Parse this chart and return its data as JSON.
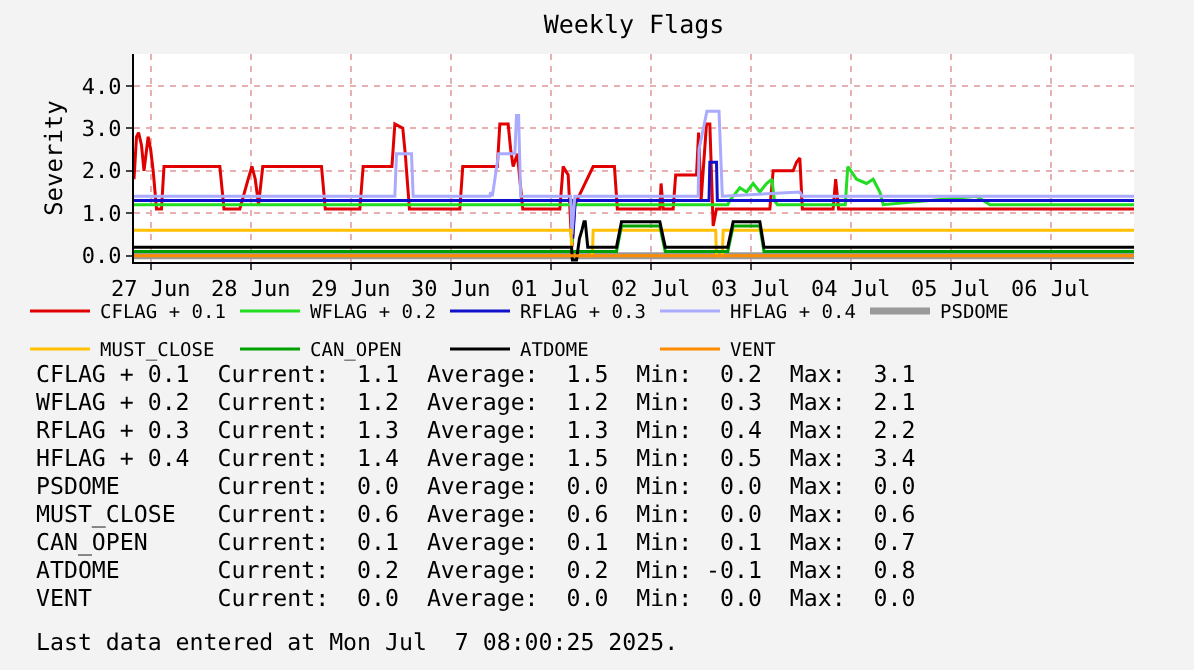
{
  "chart_data": {
    "type": "line",
    "title": "Weekly Flags",
    "ylabel": "Severity",
    "xlim": [
      "2025-06-27T08:00",
      "2025-07-07T08:00"
    ],
    "xticks": [
      {
        "value": "2025-06-27T12:00",
        "label": "27 Jun"
      },
      {
        "value": "2025-06-28T12:00",
        "label": "28 Jun"
      },
      {
        "value": "2025-06-29T12:00",
        "label": "29 Jun"
      },
      {
        "value": "2025-06-30T12:00",
        "label": "30 Jun"
      },
      {
        "value": "2025-07-01T12:00",
        "label": "01 Jul"
      },
      {
        "value": "2025-07-02T12:00",
        "label": "02 Jul"
      },
      {
        "value": "2025-07-03T12:00",
        "label": "03 Jul"
      },
      {
        "value": "2025-07-04T12:00",
        "label": "04 Jul"
      },
      {
        "value": "2025-07-05T12:00",
        "label": "05 Jul"
      },
      {
        "value": "2025-07-06T12:00",
        "label": "06 Jul"
      }
    ],
    "ylim": [
      -0.15,
      4.75
    ],
    "yticks": [
      {
        "value": 0,
        "label": "0.0"
      },
      {
        "value": 1,
        "label": "1.0"
      },
      {
        "value": 2,
        "label": "2.0"
      },
      {
        "value": 3,
        "label": "3.0"
      },
      {
        "value": 4,
        "label": "4.0"
      }
    ],
    "grid": true,
    "legend": "bottom",
    "marker": "none",
    "line_style": "solid",
    "series": [
      {
        "name": "CFLAG + 0.1",
        "color": "#e00000",
        "x": [
          "2025-06-27T08:00",
          "2025-06-27T08:36",
          "2025-06-27T09:06",
          "2025-06-27T09:48",
          "2025-06-27T10:24",
          "2025-06-27T11:24",
          "2025-06-27T12:00",
          "2025-06-27T12:36",
          "2025-06-27T13:24",
          "2025-06-27T14:36",
          "2025-06-27T15:12",
          "2025-06-28T04:36",
          "2025-06-28T05:36",
          "2025-06-28T09:24",
          "2025-06-28T11:24",
          "2025-06-28T12:18",
          "2025-06-28T13:06",
          "2025-06-28T13:54",
          "2025-06-28T14:54",
          "2025-06-29T05:00",
          "2025-06-29T05:54",
          "2025-06-29T14:12",
          "2025-06-29T15:00",
          "2025-06-29T21:54",
          "2025-06-29T22:36",
          "2025-06-30T00:30",
          "2025-06-30T01:06",
          "2025-06-30T02:06",
          "2025-06-30T14:12",
          "2025-06-30T14:54",
          "2025-06-30T23:12",
          "2025-06-30T23:48",
          "2025-07-01T01:48",
          "2025-07-01T02:24",
          "2025-07-01T03:00",
          "2025-07-01T04:00",
          "2025-07-01T05:18",
          "2025-07-01T14:12",
          "2025-07-01T15:00",
          "2025-07-01T16:12",
          "2025-07-01T17:06",
          "2025-07-01T17:48",
          "2025-07-01T22:12",
          "2025-07-02T03:18",
          "2025-07-02T04:00",
          "2025-07-02T14:12",
          "2025-07-02T14:30",
          "2025-07-02T15:00",
          "2025-07-02T17:24",
          "2025-07-02T18:00",
          "2025-07-02T23:00",
          "2025-07-02T23:30",
          "2025-07-03T00:06",
          "2025-07-03T01:24",
          "2025-07-03T02:12",
          "2025-07-03T03:00",
          "2025-07-03T03:48",
          "2025-07-03T16:36",
          "2025-07-03T17:24",
          "2025-07-03T22:12",
          "2025-07-03T23:00",
          "2025-07-03T23:48",
          "2025-07-04T00:24",
          "2025-07-04T07:48",
          "2025-07-04T08:24",
          "2025-07-04T09:06",
          "2025-07-07T08:00"
        ],
        "values": [
          1.8,
          2.8,
          2.9,
          2.6,
          2.0,
          2.8,
          2.5,
          2.0,
          1.1,
          1.1,
          2.1,
          2.1,
          1.1,
          1.1,
          1.8,
          2.1,
          1.8,
          1.2,
          2.1,
          2.1,
          1.1,
          1.1,
          2.1,
          2.1,
          3.1,
          3.0,
          2.4,
          1.1,
          1.1,
          2.1,
          2.1,
          3.1,
          3.1,
          2.5,
          2.1,
          2.4,
          1.1,
          1.1,
          2.1,
          1.9,
          0.2,
          1.2,
          2.1,
          2.1,
          1.1,
          1.1,
          1.7,
          1.1,
          1.1,
          1.9,
          1.9,
          2.9,
          1.3,
          3.1,
          3.1,
          0.7,
          1.1,
          1.1,
          2.0,
          2.0,
          2.2,
          2.3,
          1.1,
          1.1,
          1.8,
          1.1,
          1.1
        ]
      },
      {
        "name": "WFLAG + 0.2",
        "color": "#22dd22",
        "x": [
          "2025-06-27T08:00",
          "2025-07-01T17:00",
          "2025-07-01T17:12",
          "2025-07-01T17:30",
          "2025-07-03T06:30",
          "2025-07-03T07:00",
          "2025-07-03T09:24",
          "2025-07-03T11:00",
          "2025-07-03T12:36",
          "2025-07-03T14:12",
          "2025-07-03T15:48",
          "2025-07-03T17:06",
          "2025-07-03T17:42",
          "2025-07-03T18:24",
          "2025-07-04T10:42",
          "2025-07-04T11:18",
          "2025-07-04T13:24",
          "2025-07-04T15:48",
          "2025-07-04T17:24",
          "2025-07-04T19:00",
          "2025-07-04T19:48",
          "2025-07-05T18:12",
          "2025-07-05T19:48",
          "2025-07-05T21:24",
          "2025-07-07T08:00"
        ],
        "values": [
          1.2,
          1.2,
          0.3,
          1.2,
          1.2,
          1.3,
          1.6,
          1.5,
          1.7,
          1.5,
          1.7,
          1.8,
          1.3,
          1.2,
          1.2,
          2.1,
          1.8,
          1.7,
          1.8,
          1.5,
          1.2,
          1.4,
          1.3,
          1.2,
          1.2
        ]
      },
      {
        "name": "RFLAG + 0.3",
        "color": "#1111cc",
        "x": [
          "2025-06-27T08:00",
          "2025-07-01T17:06",
          "2025-07-01T17:18",
          "2025-07-01T17:54",
          "2025-07-03T02:00",
          "2025-07-03T02:12",
          "2025-07-03T03:48",
          "2025-07-03T04:00",
          "2025-07-07T08:00"
        ],
        "values": [
          1.3,
          1.3,
          0.4,
          1.3,
          1.3,
          2.2,
          2.2,
          1.3,
          1.3
        ]
      },
      {
        "name": "HFLAG + 0.4",
        "color": "#aaaaff",
        "x": [
          "2025-06-27T08:00",
          "2025-06-29T22:36",
          "2025-06-29T23:00",
          "2025-06-30T02:36",
          "2025-06-30T03:00",
          "2025-06-30T21:24",
          "2025-06-30T21:36",
          "2025-06-30T22:00",
          "2025-06-30T23:30",
          "2025-07-01T03:24",
          "2025-07-01T03:48",
          "2025-07-01T04:18",
          "2025-07-01T04:48",
          "2025-07-01T16:48",
          "2025-07-01T17:06",
          "2025-07-01T17:48",
          "2025-07-02T23:24",
          "2025-07-02T23:36",
          "2025-07-03T01:30",
          "2025-07-03T04:24",
          "2025-07-03T05:12",
          "2025-07-03T23:48",
          "2025-07-04T00:24",
          "2025-07-07T08:00"
        ],
        "values": [
          1.4,
          1.4,
          2.4,
          2.4,
          1.4,
          1.4,
          1.5,
          1.4,
          2.4,
          2.4,
          3.3,
          3.3,
          1.4,
          1.4,
          0.5,
          1.4,
          1.4,
          2.5,
          3.4,
          3.4,
          1.4,
          1.5,
          1.4,
          1.4
        ]
      },
      {
        "name": "PSDOME",
        "color": "#999999",
        "x": [
          "2025-06-27T08:00",
          "2025-07-07T08:00"
        ],
        "values": [
          0.0,
          0.0
        ]
      },
      {
        "name": "MUST_CLOSE",
        "color": "#ffc000",
        "x": [
          "2025-06-27T08:00",
          "2025-07-01T16:54",
          "2025-07-01T17:06",
          "2025-07-01T22:00",
          "2025-07-01T22:12",
          "2025-07-03T03:36",
          "2025-07-03T03:48",
          "2025-07-03T05:12",
          "2025-07-03T05:24",
          "2025-07-07T08:00"
        ],
        "values": [
          0.6,
          0.6,
          0.0,
          0.0,
          0.6,
          0.6,
          0.0,
          0.0,
          0.6,
          0.6
        ]
      },
      {
        "name": "CAN_OPEN",
        "color": "#00a000",
        "x": [
          "2025-06-27T08:00",
          "2025-07-02T03:48",
          "2025-07-02T05:00",
          "2025-07-02T14:12",
          "2025-07-02T15:30",
          "2025-07-03T06:30",
          "2025-07-03T07:48",
          "2025-07-03T14:12",
          "2025-07-03T15:12",
          "2025-07-07T08:00"
        ],
        "values": [
          0.1,
          0.1,
          0.7,
          0.7,
          0.1,
          0.1,
          0.7,
          0.7,
          0.1,
          0.1
        ]
      },
      {
        "name": "ATDOME",
        "color": "#000000",
        "x": [
          "2025-06-27T08:00",
          "2025-07-01T17:00",
          "2025-07-01T17:12",
          "2025-07-01T18:12",
          "2025-07-01T18:54",
          "2025-07-01T19:30",
          "2025-07-01T20:00",
          "2025-07-01T20:18",
          "2025-07-01T20:54",
          "2025-07-02T03:48",
          "2025-07-02T05:00",
          "2025-07-02T14:12",
          "2025-07-02T15:30",
          "2025-07-03T06:30",
          "2025-07-03T07:48",
          "2025-07-03T14:12",
          "2025-07-03T15:12",
          "2025-07-07T08:00"
        ],
        "values": [
          0.2,
          0.2,
          -0.1,
          -0.1,
          0.4,
          0.6,
          0.8,
          0.8,
          0.2,
          0.2,
          0.8,
          0.8,
          0.2,
          0.2,
          0.8,
          0.8,
          0.2,
          0.2
        ]
      },
      {
        "name": "VENT",
        "color": "#ff8c00",
        "x": [
          "2025-06-27T08:00",
          "2025-07-07T08:00"
        ],
        "values": [
          0.0,
          0.0
        ]
      }
    ],
    "annotations": [
      "CFLAG + 0.1  Current:  1.1  Average:  1.5  Min:  0.2  Max:  3.1",
      "WFLAG + 0.2  Current:  1.2  Average:  1.2  Min:  0.3  Max:  2.1",
      "RFLAG + 0.3  Current:  1.3  Average:  1.3  Min:  0.4  Max:  2.2",
      "HFLAG + 0.4  Current:  1.4  Average:  1.5  Min:  0.5  Max:  3.4",
      "PSDOME       Current:  0.0  Average:  0.0  Min:  0.0  Max:  0.0",
      "MUST_CLOSE   Current:  0.6  Average:  0.6  Min:  0.0  Max:  0.6",
      "CAN_OPEN     Current:  0.1  Average:  0.1  Min:  0.1  Max:  0.7",
      "ATDOME       Current:  0.2  Average:  0.2  Min: -0.1  Max:  0.8",
      "VENT         Current:  0.0  Average:  0.0  Min:  0.0  Max:  0.0",
      "Last data entered at Mon Jul  7 08:00:25 2025."
    ]
  }
}
